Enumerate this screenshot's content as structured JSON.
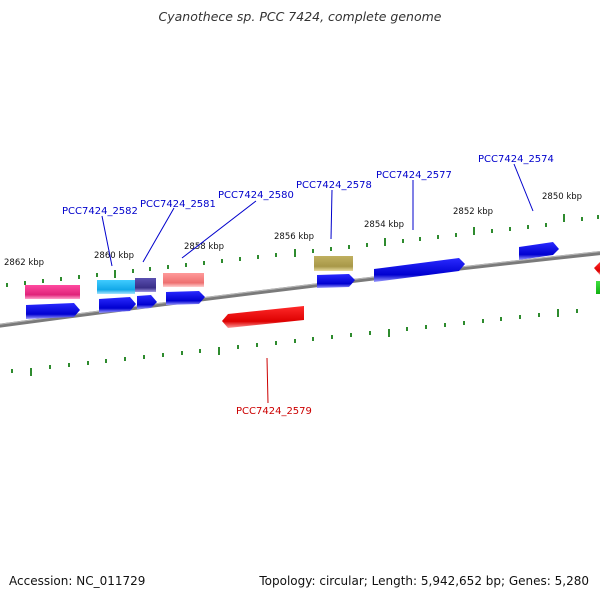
{
  "title": "Cyanothece sp. PCC 7424, complete genome",
  "footer": {
    "accession": "Accession: NC_011729",
    "summary": "Topology: circular; Length: 5,942,652 bp; Genes: 5,280"
  },
  "ruler_labels": [
    "2862 kbp",
    "2860 kbp",
    "2858 kbp",
    "2856 kbp",
    "2854 kbp",
    "2852 kbp",
    "2850 kbp"
  ],
  "gene_labels": [
    {
      "name": "PCC7424_2582",
      "color": "#0000cc"
    },
    {
      "name": "PCC7424_2581",
      "color": "#0000cc"
    },
    {
      "name": "PCC7424_2580",
      "color": "#0000cc"
    },
    {
      "name": "PCC7424_2578",
      "color": "#0000cc"
    },
    {
      "name": "PCC7424_2577",
      "color": "#0000cc"
    },
    {
      "name": "PCC7424_2574",
      "color": "#0000cc"
    },
    {
      "name": "PCC7424_2579",
      "color": "#cc0000"
    }
  ],
  "colors": {
    "backbone": "#7a7a7a",
    "tick": "#2e8b2e",
    "forward_cds": "#1010e0",
    "reverse_cds": "#e81010",
    "feature_magenta": "#e0338a",
    "feature_cyan": "#22b8ee",
    "feature_purple": "#4a3f9a",
    "feature_salmon": "#f08080",
    "feature_olive": "#b0a050"
  }
}
